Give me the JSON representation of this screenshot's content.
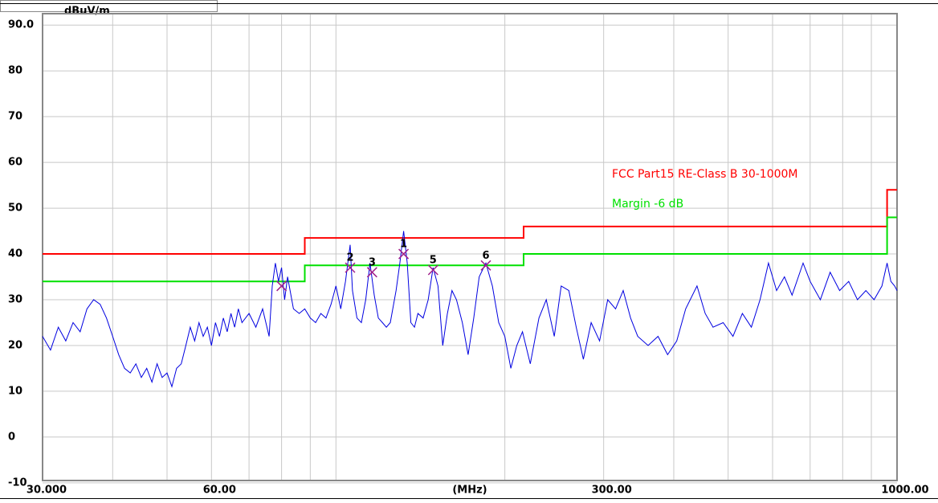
{
  "chart_data": {
    "type": "line",
    "y_unit": "dBuV/m",
    "x_label": "(MHz)",
    "log_x": true,
    "grid": true,
    "xlim": [
      30,
      1000
    ],
    "ylim": [
      -9.5,
      92.5
    ],
    "xticks": [
      {
        "value": 30,
        "label": "30.000"
      },
      {
        "value": 40,
        "label": null
      },
      {
        "value": 50,
        "label": null
      },
      {
        "value": 60,
        "label": "60.00"
      },
      {
        "value": 70,
        "label": null
      },
      {
        "value": 80,
        "label": null
      },
      {
        "value": 90,
        "label": null
      },
      {
        "value": 100,
        "label": null
      },
      {
        "value": 200,
        "label": null
      },
      {
        "value": 300,
        "label": "300.00"
      },
      {
        "value": 400,
        "label": null
      },
      {
        "value": 500,
        "label": null
      },
      {
        "value": 600,
        "label": null
      },
      {
        "value": 700,
        "label": null
      },
      {
        "value": 800,
        "label": null
      },
      {
        "value": 900,
        "label": null
      },
      {
        "value": 1000,
        "label": "1000.00"
      }
    ],
    "yticks": [
      {
        "value": 90,
        "label": "90.0"
      },
      80,
      70,
      60,
      50,
      40,
      30,
      20,
      10,
      0,
      -10
    ],
    "series": [
      {
        "name": "FCC Part15 RE-Class B 30-1000M",
        "color": "#ff0000",
        "x": [
          30,
          88,
          88,
          216,
          216,
          960,
          960,
          1000
        ],
        "values": [
          40,
          40,
          43.5,
          43.5,
          46,
          46,
          54,
          54
        ]
      },
      {
        "name": "Margin -6 dB",
        "color": "#00e000",
        "x": [
          30,
          88,
          88,
          216,
          216,
          960,
          960,
          1000
        ],
        "values": [
          34,
          34,
          37.5,
          37.5,
          40,
          40,
          48,
          48
        ]
      },
      {
        "name": null,
        "color": "#0000e0",
        "x": [
          30,
          31,
          32,
          33,
          34,
          35,
          36,
          37,
          38,
          39,
          40,
          41,
          42,
          43,
          44,
          45,
          46,
          47,
          48,
          49,
          50,
          51,
          52,
          53,
          54,
          55,
          56,
          57,
          58,
          59,
          60,
          61,
          62,
          63,
          64,
          65,
          66,
          67,
          68,
          70,
          72,
          74,
          76,
          77,
          78,
          79,
          80,
          81,
          82,
          84,
          86,
          88,
          90,
          92,
          94,
          96,
          98,
          100,
          102,
          104,
          106,
          107,
          109,
          111,
          113,
          115,
          117,
          119,
          121,
          123,
          125,
          128,
          130,
          132,
          134,
          136,
          138,
          140,
          143,
          146,
          149,
          152,
          155,
          158,
          161,
          164,
          168,
          172,
          176,
          180,
          185,
          190,
          195,
          200,
          205,
          210,
          215,
          222,
          230,
          237,
          245,
          252,
          260,
          268,
          276,
          285,
          295,
          305,
          315,
          325,
          335,
          345,
          360,
          375,
          390,
          405,
          420,
          440,
          455,
          470,
          490,
          510,
          530,
          550,
          570,
          590,
          610,
          630,
          650,
          680,
          700,
          730,
          760,
          790,
          820,
          850,
          880,
          910,
          940,
          960,
          975,
          990,
          1000
        ],
        "values": [
          22,
          19,
          24,
          21,
          25,
          23,
          28,
          30,
          29,
          26,
          22,
          18,
          15,
          14,
          16,
          13,
          15,
          12,
          16,
          13,
          14,
          11,
          15,
          16,
          20,
          24,
          21,
          25,
          22,
          24,
          20,
          25,
          22,
          26,
          23,
          27,
          24,
          28,
          25,
          27,
          24,
          28,
          22,
          33,
          38,
          34,
          37,
          30,
          35,
          28,
          27,
          28,
          26,
          25,
          27,
          26,
          29,
          33,
          28,
          34,
          42,
          32,
          26,
          25,
          30,
          38,
          31,
          26,
          25,
          24,
          25,
          32,
          38,
          45,
          38,
          25,
          24,
          27,
          26,
          30,
          37,
          33,
          20,
          27,
          32,
          30,
          25,
          18,
          26,
          35,
          38,
          33,
          25,
          22,
          15,
          20,
          23,
          16,
          26,
          30,
          22,
          33,
          32,
          24,
          17,
          25,
          21,
          30,
          28,
          32,
          26,
          22,
          20,
          22,
          18,
          21,
          28,
          33,
          27,
          24,
          25,
          22,
          27,
          24,
          30,
          38,
          32,
          35,
          31,
          38,
          34,
          30,
          36,
          32,
          34,
          30,
          32,
          30,
          33,
          38,
          34,
          33,
          32
        ]
      }
    ],
    "markers": {
      "labels": [
        null,
        "2",
        "3",
        "1",
        "5",
        "6"
      ],
      "x": [
        80,
        106,
        116,
        132,
        149,
        185
      ],
      "values": [
        33,
        37,
        36,
        40,
        36.5,
        37.5
      ],
      "color": "#a0208a"
    }
  }
}
